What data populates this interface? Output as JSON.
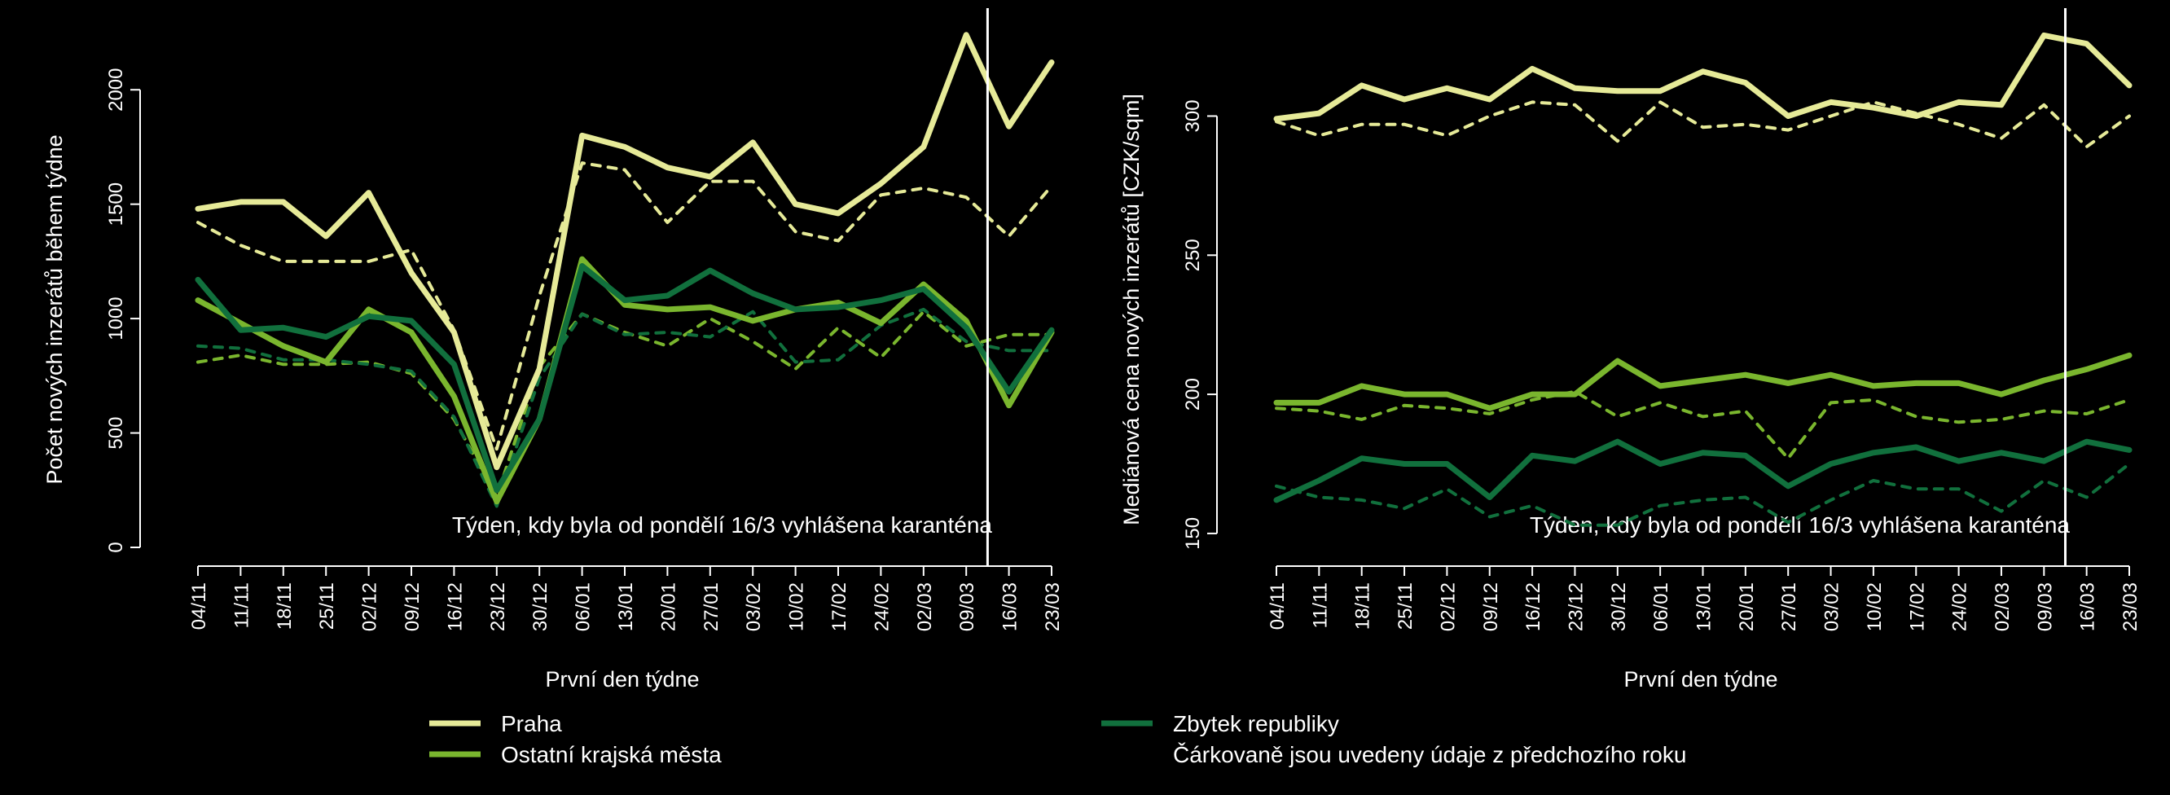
{
  "colors": {
    "background": "#000000",
    "foreground": "#ffffff",
    "praha": "#e6ea98",
    "krajska": "#7ab62e",
    "zbytek": "#11703d"
  },
  "legend": {
    "praha": "Praha",
    "krajska": "Ostatní krajská města",
    "zbytek": "Zbytek republiky",
    "note": "Čárkovaně jsou uvedeny údaje z předchozího roku"
  },
  "chart_data": [
    {
      "type": "line",
      "ylabel": "Počet nových inzerátů během týdne",
      "xlabel": "První den týdne",
      "annotation": "Týden, kdy byla od pondělí 16/3 vyhlášena karanténa",
      "vline_category": "16/03",
      "ylim": [
        0,
        2250
      ],
      "yticks": [
        0,
        500,
        1000,
        1500,
        2000
      ],
      "categories": [
        "04/11",
        "11/11",
        "18/11",
        "25/11",
        "02/12",
        "09/12",
        "16/12",
        "23/12",
        "30/12",
        "06/01",
        "13/01",
        "20/01",
        "27/01",
        "03/02",
        "10/02",
        "17/02",
        "24/02",
        "02/03",
        "09/03",
        "16/03",
        "23/03"
      ],
      "series": [
        {
          "key": "praha",
          "name": "Praha",
          "dashed": false,
          "values": [
            1480,
            1510,
            1510,
            1360,
            1550,
            1200,
            940,
            350,
            780,
            1800,
            1750,
            1660,
            1620,
            1770,
            1500,
            1460,
            1590,
            1750,
            2240,
            1840,
            2120
          ]
        },
        {
          "key": "krajska",
          "name": "Ostatní krajská města",
          "dashed": false,
          "values": [
            1080,
            980,
            880,
            810,
            1040,
            940,
            660,
            200,
            560,
            1260,
            1060,
            1040,
            1050,
            990,
            1040,
            1070,
            980,
            1150,
            990,
            620,
            940
          ]
        },
        {
          "key": "zbytek",
          "name": "Zbytek republiky",
          "dashed": false,
          "values": [
            1170,
            950,
            960,
            920,
            1010,
            990,
            800,
            250,
            560,
            1230,
            1080,
            1100,
            1210,
            1110,
            1040,
            1050,
            1080,
            1130,
            960,
            680,
            950
          ]
        },
        {
          "key": "praha",
          "dashed": true,
          "values": [
            1420,
            1320,
            1250,
            1250,
            1250,
            1300,
            950,
            430,
            1100,
            1680,
            1650,
            1420,
            1600,
            1600,
            1380,
            1340,
            1540,
            1570,
            1530,
            1360,
            1580
          ]
        },
        {
          "key": "krajska",
          "dashed": true,
          "values": [
            810,
            840,
            800,
            800,
            810,
            760,
            560,
            220,
            790,
            1020,
            940,
            880,
            1000,
            900,
            780,
            960,
            830,
            1030,
            880,
            930,
            930
          ]
        },
        {
          "key": "zbytek",
          "dashed": true,
          "values": [
            880,
            870,
            820,
            820,
            800,
            770,
            570,
            180,
            740,
            1020,
            930,
            940,
            920,
            1030,
            810,
            820,
            970,
            1040,
            900,
            860,
            860
          ]
        }
      ]
    },
    {
      "type": "line",
      "ylabel": "Mediánová cena nových inzerátů [CZK/sqm]",
      "xlabel": "První den týdne",
      "annotation": "Týden, kdy byla od pondělí 16/3 vyhlášena karanténa",
      "vline_category": "16/03",
      "ylim": [
        145,
        330
      ],
      "yticks": [
        150,
        200,
        250,
        300
      ],
      "categories": [
        "04/11",
        "11/11",
        "18/11",
        "25/11",
        "02/12",
        "09/12",
        "16/12",
        "23/12",
        "30/12",
        "06/01",
        "13/01",
        "20/01",
        "27/01",
        "03/02",
        "10/02",
        "17/02",
        "24/02",
        "02/03",
        "09/03",
        "16/03",
        "23/03"
      ],
      "series": [
        {
          "key": "praha",
          "name": "Praha",
          "dashed": false,
          "values": [
            299,
            301,
            311,
            306,
            310,
            306,
            317,
            310,
            309,
            309,
            316,
            312,
            300,
            305,
            303,
            300,
            305,
            304,
            329,
            326,
            311
          ]
        },
        {
          "key": "krajska",
          "name": "Ostatní krajská města",
          "dashed": false,
          "values": [
            197,
            197,
            203,
            200,
            200,
            195,
            200,
            200,
            212,
            203,
            205,
            207,
            204,
            207,
            203,
            204,
            204,
            200,
            205,
            209,
            214
          ]
        },
        {
          "key": "zbytek",
          "name": "Zbytek republiky",
          "dashed": false,
          "values": [
            162,
            169,
            177,
            175,
            175,
            163,
            178,
            176,
            183,
            175,
            179,
            178,
            167,
            175,
            179,
            181,
            176,
            179,
            176,
            183,
            180
          ]
        },
        {
          "key": "praha",
          "dashed": true,
          "values": [
            298,
            293,
            297,
            297,
            293,
            300,
            305,
            304,
            291,
            305,
            296,
            297,
            295,
            300,
            305,
            301,
            297,
            292,
            304,
            289,
            300
          ]
        },
        {
          "key": "krajska",
          "dashed": true,
          "values": [
            195,
            194,
            191,
            196,
            195,
            193,
            198,
            201,
            192,
            197,
            192,
            194,
            177,
            197,
            198,
            192,
            190,
            191,
            194,
            193,
            198
          ]
        },
        {
          "key": "zbytek",
          "dashed": true,
          "values": [
            167,
            163,
            162,
            159,
            166,
            156,
            160,
            153,
            153,
            160,
            162,
            163,
            154,
            162,
            169,
            166,
            166,
            158,
            169,
            163,
            175
          ]
        }
      ]
    }
  ]
}
